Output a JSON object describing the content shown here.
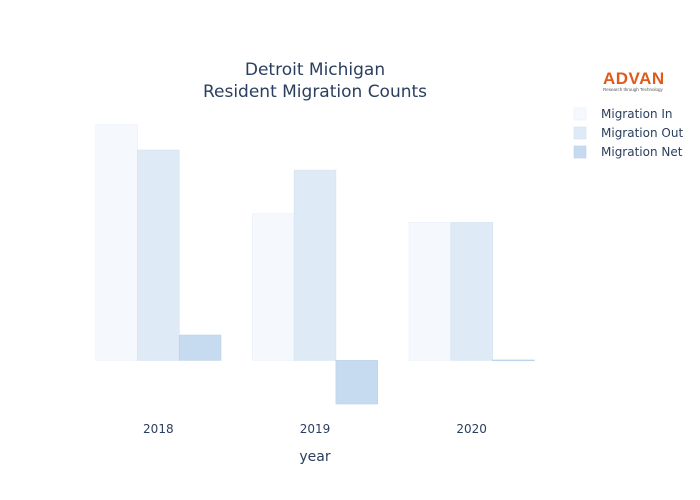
{
  "logo": {
    "name": "ADVAN",
    "tagline": "Research through Technology",
    "color": "#e05a1c"
  },
  "chart_data": {
    "type": "bar",
    "title": [
      "Detroit Michigan",
      "Resident Migration Counts"
    ],
    "xlabel": "year",
    "ylabel": "",
    "categories": [
      "2018",
      "2019",
      "2020"
    ],
    "ylim": [
      -50,
      280
    ],
    "grid": false,
    "legend_position": "top-right",
    "series": [
      {
        "name": "Migration In",
        "values": [
          270,
          168,
          158
        ],
        "color": "#f5f9fd",
        "stroke": "#e9f0f8"
      },
      {
        "name": "Migration Out",
        "values": [
          241,
          218,
          158
        ],
        "color": "#deebf7",
        "stroke": "#d2e2f1"
      },
      {
        "name": "Migration Net",
        "values": [
          29,
          -50,
          0
        ],
        "color": "#c6dbef",
        "stroke": "#b9d1e8"
      }
    ]
  }
}
